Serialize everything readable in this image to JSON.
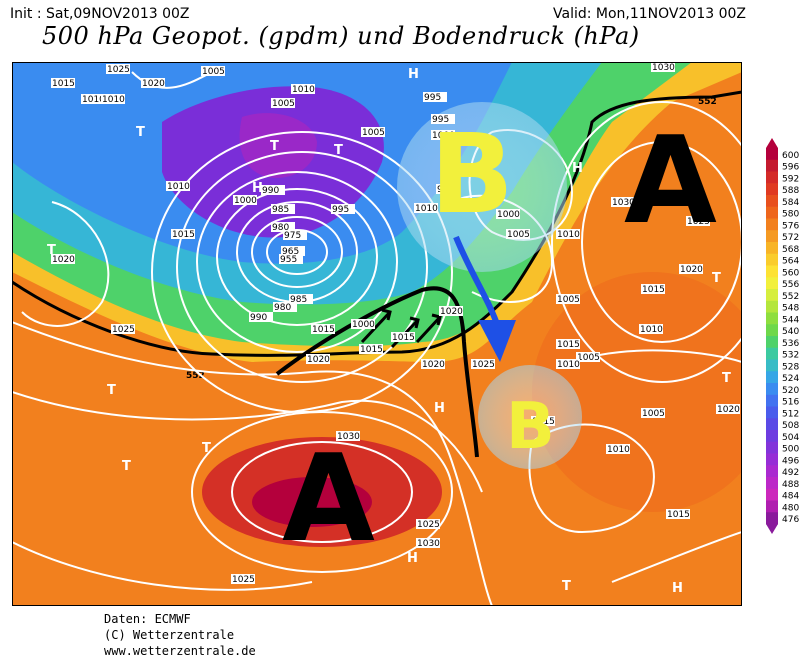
{
  "header": {
    "init": "Init : Sat,09NOV2013 00Z",
    "valid": "Valid: Mon,11NOV2013 00Z",
    "title": "500 hPa Geopot. (gpdm) und Bodendruck (hPa)"
  },
  "footer": {
    "line1": "Daten: ECMWF",
    "line2": "(C) Wetterzentrale",
    "line3": "www.wetterzentrale.de"
  },
  "colorbar": {
    "levels": [
      "600",
      "596",
      "592",
      "588",
      "584",
      "580",
      "576",
      "572",
      "568",
      "564",
      "560",
      "556",
      "552",
      "548",
      "544",
      "540",
      "536",
      "532",
      "528",
      "524",
      "520",
      "516",
      "512",
      "508",
      "504",
      "500",
      "496",
      "492",
      "488",
      "484",
      "480",
      "476"
    ],
    "colors": [
      "#b4003c",
      "#c41a2e",
      "#d42a28",
      "#e03a22",
      "#e8501e",
      "#ee661c",
      "#f2801e",
      "#f59a22",
      "#f8b426",
      "#facc2c",
      "#fde234",
      "#f2f03c",
      "#d6ee3e",
      "#b4e63c",
      "#8ede3e",
      "#6ed84a",
      "#4ed26a",
      "#3ccaa0",
      "#38bcc6",
      "#36a6e6",
      "#3a8cf0",
      "#4272f0",
      "#4a5cec",
      "#5a4ae6",
      "#6e3ce0",
      "#8234da",
      "#962ed6",
      "#aa2ad0",
      "#bc28c8",
      "#cc28bc",
      "#b01eb0",
      "#8a1a9c"
    ]
  },
  "map": {
    "systems": [
      {
        "label": "A",
        "kind": "high"
      },
      {
        "label": "A",
        "kind": "high"
      },
      {
        "label": "B",
        "kind": "low"
      },
      {
        "label": "B",
        "kind": "low"
      }
    ],
    "small_markers": {
      "high": "H",
      "low": "T"
    },
    "line_552": "552",
    "isobar_labels": [
      "1025",
      "1020",
      "1015",
      "1010",
      "1010",
      "1005",
      "1010",
      "1005",
      "995",
      "995",
      "1000",
      "990",
      "985",
      "980",
      "975",
      "965",
      "955",
      "985",
      "980",
      "990",
      "1000",
      "995",
      "1005",
      "1010",
      "1015",
      "1020",
      "1025",
      "1030",
      "1030",
      "1025",
      "1020",
      "1015",
      "1010",
      "1005",
      "1010",
      "1015",
      "1015",
      "1010",
      "1005",
      "1015",
      "1025",
      "1025",
      "1030",
      "1030",
      "1020",
      "1015",
      "995",
      "1000",
      "1005",
      "1010",
      "1020",
      "1020",
      "1025",
      "1010",
      "1005",
      "1000",
      "1015",
      "1015",
      "1020"
    ],
    "colors": {
      "low_core": "#6a1fd0",
      "cold": "#3a8cf0",
      "mid": "#4ed26a",
      "warm": "#f2801e",
      "high_core": "#c41a2e",
      "system_letter_A": "#000000",
      "system_letter_B": "#f2f03c",
      "arrow": "#1e50e6"
    }
  }
}
